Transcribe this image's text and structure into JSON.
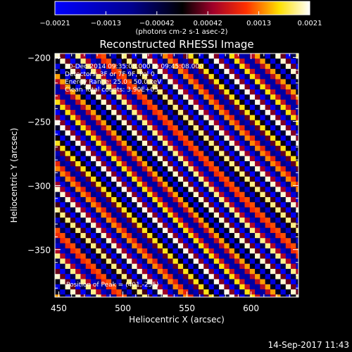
{
  "chart_data": {
    "type": "heatmap",
    "title": "Reconstructed RHESSI Image",
    "xlabel": "Heliocentric X (arcsec)",
    "ylabel": "Heliocentric Y (arcsec)",
    "xlim": [
      447,
      637
    ],
    "ylim": [
      -387,
      -197
    ],
    "x_ticks": [
      450,
      500,
      550,
      600
    ],
    "y_ticks": [
      -200,
      -250,
      -300,
      -350
    ],
    "colorbar": {
      "range": [
        -0.0021,
        0.0021
      ],
      "tick_labels": [
        "-0.0021",
        "-0.0013",
        "-0.00042",
        "0.00042",
        "0.0013",
        "0.0021"
      ],
      "unit_label": "(photons cm-2 s-1 asec-2)",
      "colormap": [
        "#0000ff",
        "#000000",
        "#ff0000",
        "#ffff00",
        "#ffffff"
      ]
    },
    "pattern": {
      "description": "diagonal striped modulation pattern",
      "pixel_size_arcsec": 4,
      "amplitude": 0.0021
    },
    "annotations": [
      "20-Dec-2014 09:35:08.000 to 09:45:08.000",
      "Detectors: 3F or 7F 9F, Pol 0",
      "Energy Range: 25.0 - 50.0 keV",
      "Clean     Total counts: 3.90E+03",
      "Position of Peak = (401,-255)"
    ],
    "timestamp": "14-Sep-2017 11:43"
  }
}
